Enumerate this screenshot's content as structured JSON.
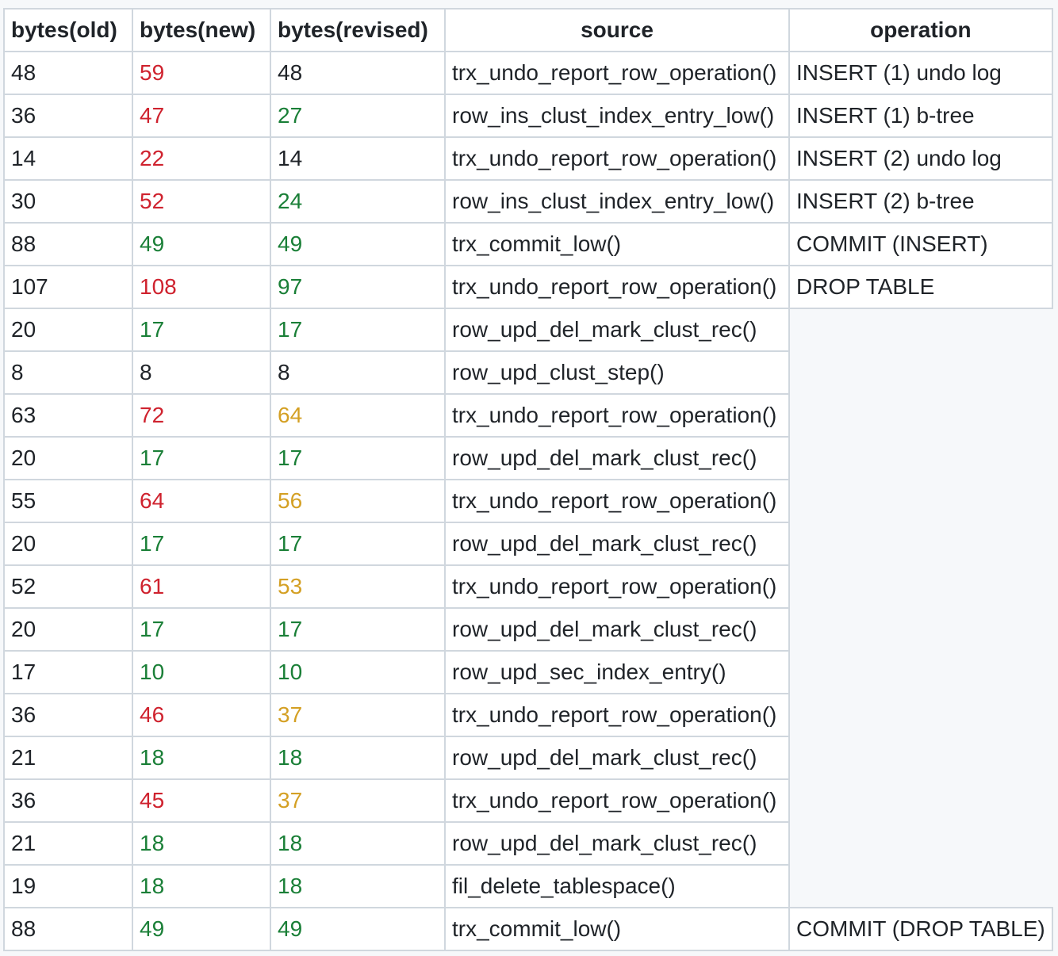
{
  "colors": {
    "red": "#cf222e",
    "green": "#1a7f37",
    "orange": "#d4a024",
    "plain": "#1f2328"
  },
  "headers": [
    "bytes(old)",
    "bytes(new)",
    "bytes(revised)",
    "source",
    "operation"
  ],
  "rows": [
    {
      "old": "48",
      "new": "59",
      "new_color": "red",
      "rev": "48",
      "rev_color": "plain",
      "source": "trx_undo_report_row_operation()",
      "operation": "INSERT (1) undo log"
    },
    {
      "old": "36",
      "new": "47",
      "new_color": "red",
      "rev": "27",
      "rev_color": "green",
      "source": "row_ins_clust_index_entry_low()",
      "operation": "INSERT (1) b-tree"
    },
    {
      "old": "14",
      "new": "22",
      "new_color": "red",
      "rev": "14",
      "rev_color": "plain",
      "source": "trx_undo_report_row_operation()",
      "operation": "INSERT (2) undo log"
    },
    {
      "old": "30",
      "new": "52",
      "new_color": "red",
      "rev": "24",
      "rev_color": "green",
      "source": "row_ins_clust_index_entry_low()",
      "operation": "INSERT (2) b-tree"
    },
    {
      "old": "88",
      "new": "49",
      "new_color": "green",
      "rev": "49",
      "rev_color": "green",
      "source": "trx_commit_low()",
      "operation": "COMMIT (INSERT)"
    },
    {
      "old": "107",
      "new": "108",
      "new_color": "red",
      "rev": "97",
      "rev_color": "green",
      "source": "trx_undo_report_row_operation()",
      "operation": "DROP TABLE"
    },
    {
      "old": "20",
      "new": "17",
      "new_color": "green",
      "rev": "17",
      "rev_color": "green",
      "source": "row_upd_del_mark_clust_rec()",
      "operation": null
    },
    {
      "old": "8",
      "new": "8",
      "new_color": "plain",
      "rev": "8",
      "rev_color": "plain",
      "source": "row_upd_clust_step()",
      "operation": null
    },
    {
      "old": "63",
      "new": "72",
      "new_color": "red",
      "rev": "64",
      "rev_color": "orange",
      "source": "trx_undo_report_row_operation()",
      "operation": null
    },
    {
      "old": "20",
      "new": "17",
      "new_color": "green",
      "rev": "17",
      "rev_color": "green",
      "source": "row_upd_del_mark_clust_rec()",
      "operation": null
    },
    {
      "old": "55",
      "new": "64",
      "new_color": "red",
      "rev": "56",
      "rev_color": "orange",
      "source": "trx_undo_report_row_operation()",
      "operation": null
    },
    {
      "old": "20",
      "new": "17",
      "new_color": "green",
      "rev": "17",
      "rev_color": "green",
      "source": "row_upd_del_mark_clust_rec()",
      "operation": null
    },
    {
      "old": "52",
      "new": "61",
      "new_color": "red",
      "rev": "53",
      "rev_color": "orange",
      "source": "trx_undo_report_row_operation()",
      "operation": null
    },
    {
      "old": "20",
      "new": "17",
      "new_color": "green",
      "rev": "17",
      "rev_color": "green",
      "source": "row_upd_del_mark_clust_rec()",
      "operation": null
    },
    {
      "old": "17",
      "new": "10",
      "new_color": "green",
      "rev": "10",
      "rev_color": "green",
      "source": "row_upd_sec_index_entry()",
      "operation": null
    },
    {
      "old": "36",
      "new": "46",
      "new_color": "red",
      "rev": "37",
      "rev_color": "orange",
      "source": "trx_undo_report_row_operation()",
      "operation": null
    },
    {
      "old": "21",
      "new": "18",
      "new_color": "green",
      "rev": "18",
      "rev_color": "green",
      "source": "row_upd_del_mark_clust_rec()",
      "operation": null
    },
    {
      "old": "36",
      "new": "45",
      "new_color": "red",
      "rev": "37",
      "rev_color": "orange",
      "source": "trx_undo_report_row_operation()",
      "operation": null
    },
    {
      "old": "21",
      "new": "18",
      "new_color": "green",
      "rev": "18",
      "rev_color": "green",
      "source": "row_upd_del_mark_clust_rec()",
      "operation": null
    },
    {
      "old": "19",
      "new": "18",
      "new_color": "green",
      "rev": "18",
      "rev_color": "green",
      "source": "fil_delete_tablespace()",
      "operation": null
    },
    {
      "old": "88",
      "new": "49",
      "new_color": "green",
      "rev": "49",
      "rev_color": "green",
      "source": "trx_commit_low()",
      "operation": "COMMIT (DROP TABLE)"
    }
  ]
}
